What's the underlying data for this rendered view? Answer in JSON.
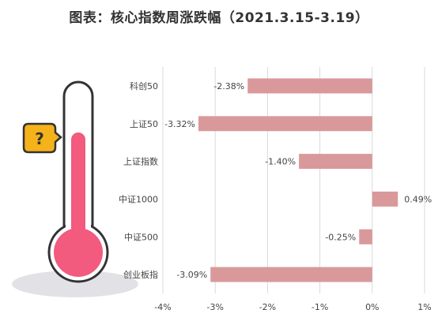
{
  "title": "图表：核心指数周涨跌幅（2021.3.15-3.19）",
  "colors": {
    "bar": "#d9999b",
    "thermo_fill": "#f25a7e",
    "thermo_outline": "#333333",
    "badge": "#f5b21a",
    "shadow": "#e2e2e6",
    "grid": "#d9d9d9"
  },
  "icons": {
    "thermometer": "thermometer-icon",
    "badge": "question-badge-icon"
  },
  "badge_text": "?",
  "chart_data": {
    "type": "bar",
    "orientation": "horizontal",
    "categories": [
      "科创50",
      "上证50",
      "上证指数",
      "中证1000",
      "中证500",
      "创业板指"
    ],
    "values": [
      -2.38,
      -3.32,
      -1.4,
      0.49,
      -0.25,
      -3.09
    ],
    "value_labels": [
      "-2.38%",
      "-3.32%",
      "-1.40%",
      "0.49%",
      "-0.25%",
      "-3.09%"
    ],
    "x_ticks": [
      -4,
      -3,
      -2,
      -1,
      0,
      1
    ],
    "x_tick_labels": [
      "-4%",
      "-3%",
      "-2%",
      "-1%",
      "0%",
      "1%"
    ],
    "xlim": [
      -4,
      1
    ],
    "grid": "vertical",
    "title": "图表：核心指数周涨跌幅（2021.3.15-3.19）"
  }
}
